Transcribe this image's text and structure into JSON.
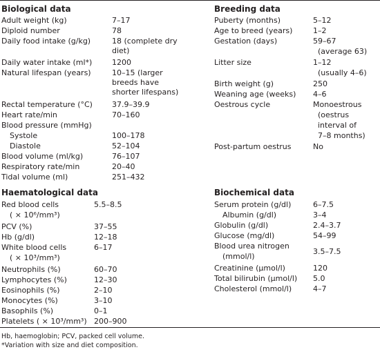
{
  "biological": {
    "title": "Biological data",
    "rows": [
      {
        "label": "Adult weight (kg)",
        "value": "7–17"
      },
      {
        "label": "Diploid number",
        "value": "78"
      },
      {
        "label": "Daily food intake (g/kg)",
        "value": "18 (complete dry diet)"
      },
      {
        "label": "Daily water intake (ml*)",
        "value": "1200"
      },
      {
        "label": "Natural lifespan (years)",
        "value": "10–15 (larger breeds have shorter lifespans)"
      },
      {
        "label": "Rectal temperature (°C)",
        "value": "37.9–39.9"
      },
      {
        "label": "Heart rate/min",
        "value": "70–160"
      },
      {
        "label": "Blood pressure (mmHg)",
        "value": ""
      },
      {
        "label": "Systole",
        "value": "100–178"
      },
      {
        "label": "Diastole",
        "value": "52–104"
      },
      {
        "label": "Blood volume (ml/kg)",
        "value": "76–107"
      },
      {
        "label": "Respiratory rate/min",
        "value": "20–40"
      },
      {
        "label": "Tidal volume (ml)",
        "value": "251–432"
      }
    ]
  },
  "breeding": {
    "title": "Breeding data",
    "rows": [
      {
        "label": "Puberty (months)",
        "value": "5–12"
      },
      {
        "label": "Age to breed (years)",
        "value": "1–2"
      },
      {
        "label": "Gestation (days)",
        "value": "59–67",
        "value2": "(average 63)"
      },
      {
        "label": "Litter size",
        "value": "1–12",
        "value2": "(usually 4–6)"
      },
      {
        "label": "Birth weight (g)",
        "value": "250"
      },
      {
        "label": "Weaning age (weeks)",
        "value": "4–6"
      },
      {
        "label": "Oestrous cycle",
        "value": "Monoestrous",
        "value2": "(oestrus",
        "value3": "interval of",
        "value4": "7–8 months)"
      },
      {
        "label": "Post-partum oestrus",
        "value": "No"
      }
    ]
  },
  "haematological": {
    "title": "Haematological data",
    "rows": [
      {
        "label": "Red blood cells",
        "label2": "( × 10⁶/mm³)",
        "value": "5.5–8.5"
      },
      {
        "label": "PCV (%)",
        "value": "37–55"
      },
      {
        "label": "Hb (g/dl)",
        "value": "12–18"
      },
      {
        "label": "White blood cells",
        "label2": "( × 10³/mm³)",
        "value": "6–17"
      },
      {
        "label": "Neutrophils (%)",
        "value": "60–70"
      },
      {
        "label": "Lymphocytes (%)",
        "value": "12–30"
      },
      {
        "label": "Eosinophils (%)",
        "value": "2–10"
      },
      {
        "label": "Monocytes (%)",
        "value": "3–10"
      },
      {
        "label": "Basophils (%)",
        "value": "0–1"
      },
      {
        "label": "Platelets ( × 10³/mm³)",
        "value": "200–900"
      }
    ]
  },
  "biochemical": {
    "title": "Biochemical data",
    "rows": [
      {
        "label": "Serum protein (g/dl)",
        "value": "6–7.5"
      },
      {
        "label": "Albumin (g/dl)",
        "value": "3–4"
      },
      {
        "label": "Globulin (g/dl)",
        "value": "2.4–3.7"
      },
      {
        "label": "Glucose (mg/dl)",
        "value": "54–99"
      },
      {
        "label": "Blood urea nitrogen",
        "label2": "(mmol/l)",
        "value": "3.5–7.5"
      },
      {
        "label": "Creatinine (μmol/l)",
        "value": "120"
      },
      {
        "label": "Total bilirubin (μmol/l)",
        "value": "5.0"
      },
      {
        "label": "Cholesterol (mmol/l)",
        "value": "4–7"
      }
    ]
  },
  "footnotes": [
    "Hb, haemoglobin; PCV, packed cell volume.",
    "*Variation with size and diet composition."
  ]
}
